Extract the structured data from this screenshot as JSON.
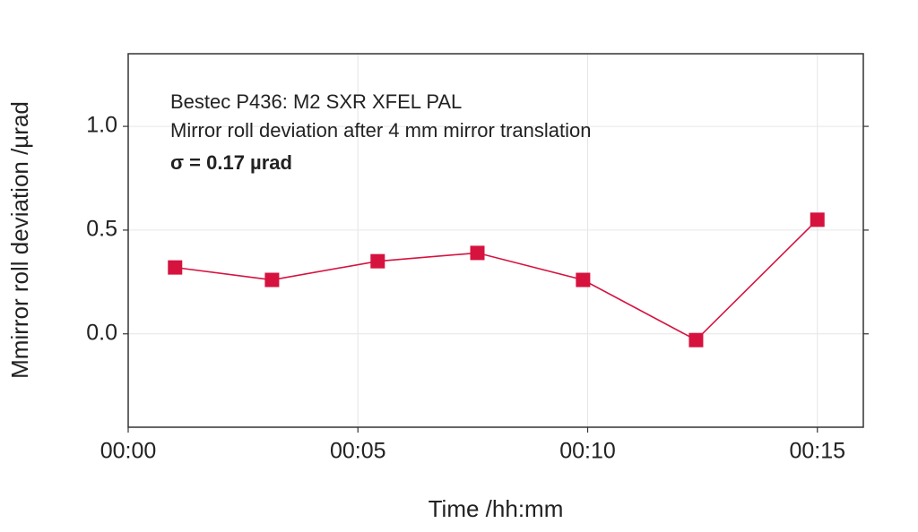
{
  "chart_data": {
    "type": "line",
    "annotations": [
      "Bestec P436: M2 SXR XFEL PAL",
      "Mirror roll deviation after 4 mm mirror translation",
      "σ = 0.17 µrad"
    ],
    "x_label": "Time /hh:mm",
    "y_label": "Mmirror roll deviation /µrad",
    "x": [
      1.02,
      3.13,
      5.43,
      7.6,
      9.9,
      12.36,
      15.0
    ],
    "series": [
      {
        "color": "#d6123f",
        "values": [
          0.32,
          0.26,
          0.35,
          0.39,
          0.26,
          -0.03,
          0.55
        ]
      }
    ],
    "xlim": [
      0,
      16
    ],
    "xticks": [
      {
        "value": 0,
        "label": "00:00"
      },
      {
        "value": 5,
        "label": "00:05"
      },
      {
        "value": 10,
        "label": "00:10"
      },
      {
        "value": 15,
        "label": "00:15"
      }
    ],
    "ylim": [
      -0.45,
      1.35
    ],
    "yticks": [
      {
        "value": 0,
        "label": "0.0"
      },
      0.5,
      {
        "value": 1,
        "label": "1.0"
      }
    ],
    "grid": true
  }
}
